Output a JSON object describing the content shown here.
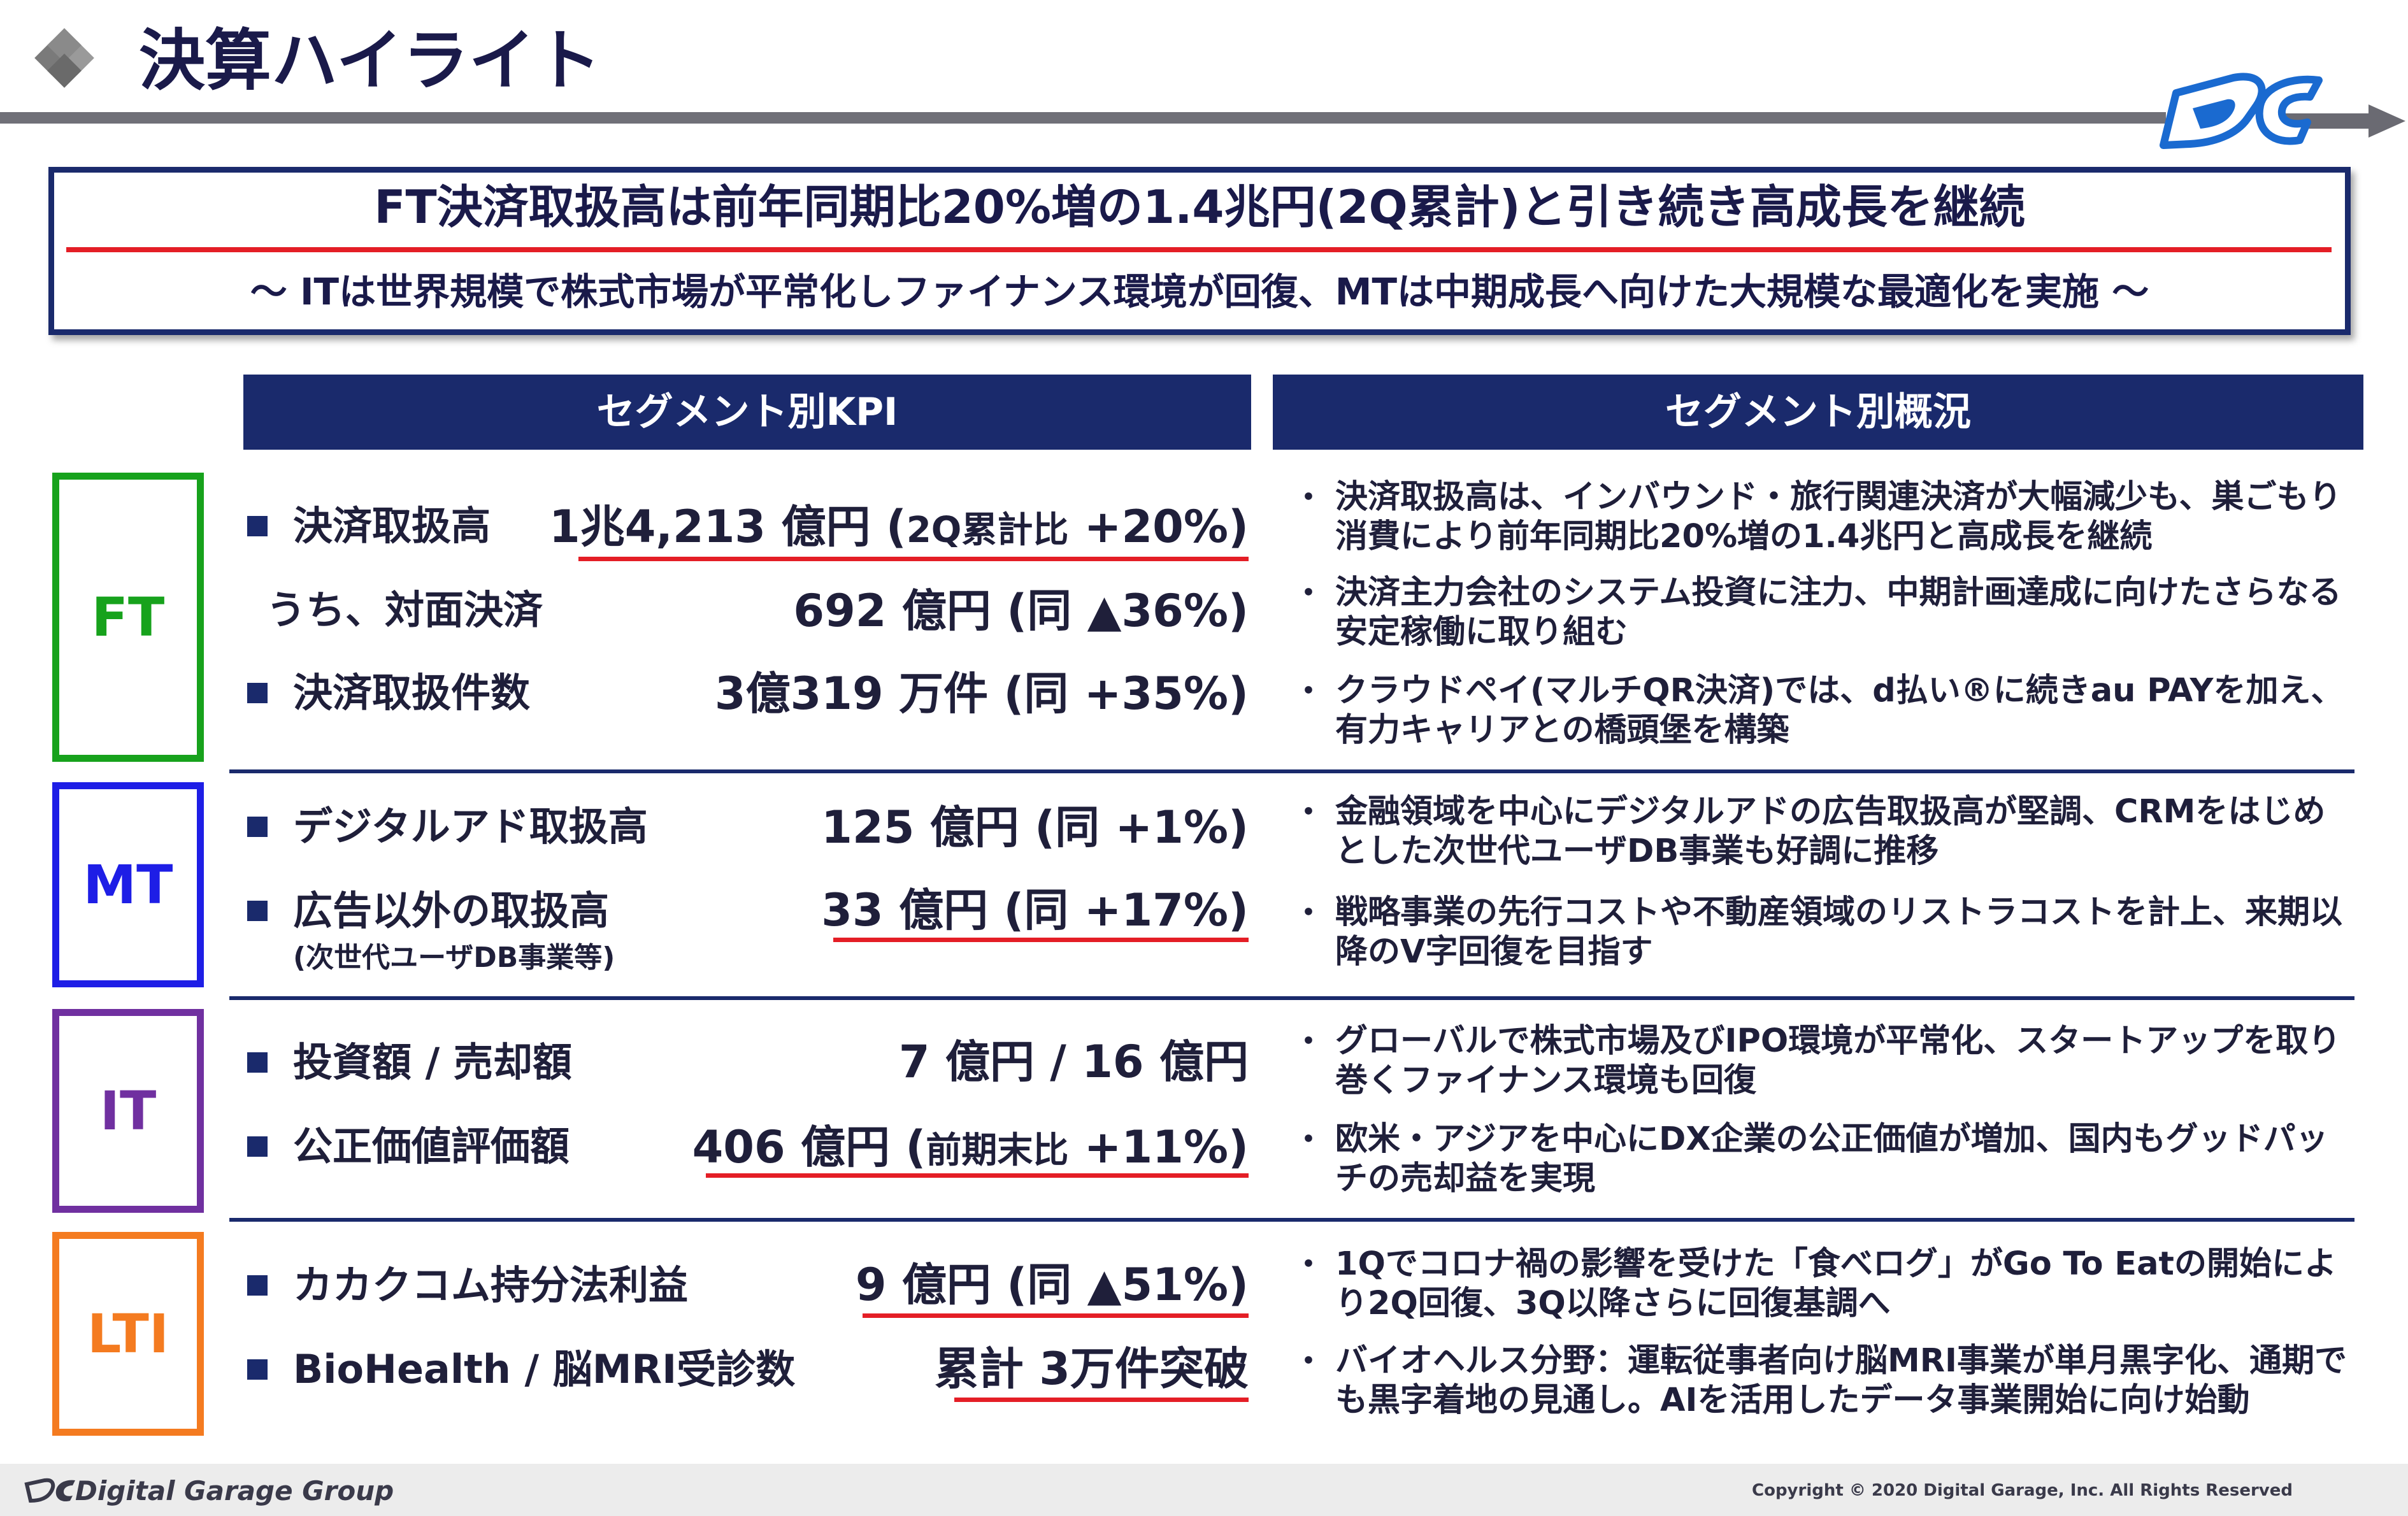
{
  "header": {
    "title": "決算ハイライト"
  },
  "summary": {
    "headline": "FT決済取扱高は前年同期比20%増の1.4兆円(2Q累計)と引き続き高成長を継続",
    "subline": "～ ITは世界規模で株式市場が平常化しファイナンス環境が回復、MTは中期成長へ向けた大規模な最適化を実施 ～"
  },
  "columns": {
    "kpi": "セグメント別KPI",
    "overview": "セグメント別概況"
  },
  "segments": {
    "ft": {
      "name": "FT",
      "kpi": [
        {
          "label": "決済取扱高",
          "value": "1兆4,213 億円 (",
          "value_small": "2Q累計比",
          "value_end": " +20%)"
        },
        {
          "label": "うち、対面決済",
          "value": "692 億円 (同 ▲36%)"
        },
        {
          "label": "決済取扱件数",
          "value": "3億319 万件 (同 +35%)"
        }
      ],
      "bullets": [
        "決済取扱高は、インバウンド・旅行関連決済が大幅減少も、巣ごもり消費により前年同期比20%増の1.4兆円と高成長を継続",
        "決済主力会社のシステム投資に注力、中期計画達成に向けたさらなる安定稼働に取り組む",
        "クラウドペイ(マルチQR決済)では、d払い®に続きau PAYを加え、有力キャリアとの橋頭堡を構築"
      ]
    },
    "mt": {
      "name": "MT",
      "kpi": [
        {
          "label": "デジタルアド取扱高",
          "value": "125 億円 (同 +1%)"
        },
        {
          "label": "広告以外の取扱高",
          "sub": "(次世代ユーザDB事業等)",
          "value": "33 億円 (同 +17%)"
        }
      ],
      "bullets": [
        "金融領域を中心にデジタルアドの広告取扱高が堅調、CRMをはじめとした次世代ユーザDB事業も好調に推移",
        "戦略事業の先行コストや不動産領域のリストラコストを計上、来期以降のV字回復を目指す"
      ]
    },
    "it": {
      "name": "IT",
      "kpi": [
        {
          "label": "投資額 / 売却額",
          "value": "7 億円 / 16 億円"
        },
        {
          "label": "公正価値評価額",
          "value": "406 億円 (",
          "value_small": "前期末比",
          "value_end": " +11%)"
        }
      ],
      "bullets": [
        "グローバルで株式市場及びIPO環境が平常化、スタートアップを取り巻くファイナンス環境も回復",
        "欧米・アジアを中心にDX企業の公正価値が増加、国内もグッドパッチの売却益を実現"
      ]
    },
    "lti": {
      "name": "LTI",
      "kpi": [
        {
          "label": "カカクコム持分法利益",
          "value": "9 億円 (同 ▲51%)"
        },
        {
          "label": "BioHealth / 脳MRI受診数",
          "value": "累計 3万件突破"
        }
      ],
      "bullets": [
        "1Qでコロナ禍の影響を受けた「食べログ」がGo To Eatの開始により2Q回復、3Q以降さらに回復基調へ",
        "バイオヘルス分野：運転従事者向け脳MRI事業が単月黒字化、通期でも黒字着地の見通し。AIを活用したデータ事業開始に向け始動"
      ]
    }
  },
  "footer": {
    "brand": "Digital Garage Group",
    "copyright": "Copyright © 2020 Digital Garage, Inc. All Rights Reserved"
  },
  "colors": {
    "navy": "#1a2a6c",
    "red": "#e41e26",
    "ft": "#17a21c",
    "mt": "#1e1ee6",
    "it": "#7030a0",
    "lti": "#f47b20"
  }
}
